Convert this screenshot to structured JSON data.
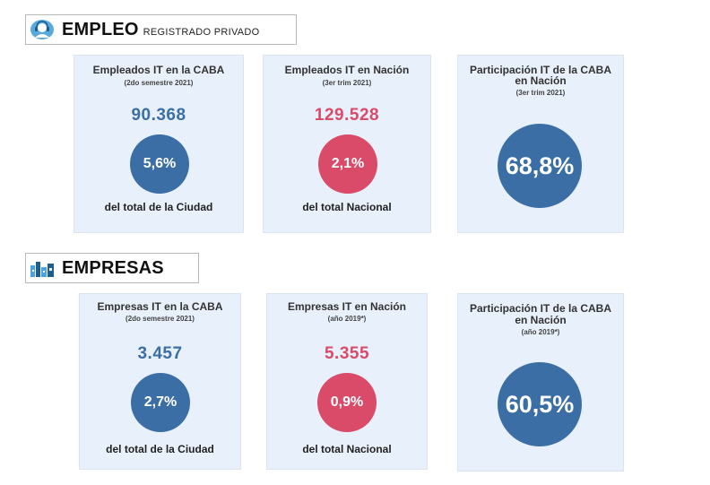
{
  "empleo": {
    "title": "EMPLEO",
    "subtitle": "REGISTRADO PRIVADO",
    "icon": "person-headset-icon",
    "cards": [
      {
        "title": "Empleados IT en la CABA",
        "sub": "(2do semestre 2021)",
        "value": "90.368",
        "percent": "5,6%",
        "footer": "del total de la Ciudad"
      },
      {
        "title": "Empleados IT en Nación",
        "sub": "(3er trim 2021)",
        "value": "129.528",
        "percent": "2,1%",
        "footer": "del total Nacional"
      },
      {
        "title_line1": "Participación IT de la CABA",
        "title_line2": "en Nación",
        "sub": "(3er trim 2021)",
        "percent": "68,8%"
      }
    ]
  },
  "empresas": {
    "title": "EMPRESAS",
    "icon": "factory-icon",
    "cards": [
      {
        "title": "Empresas IT en la CABA",
        "sub": "(2do semestre 2021)",
        "value": "3.457",
        "percent": "2,7%",
        "footer": "del total de la Ciudad"
      },
      {
        "title": "Empresas IT en Nación",
        "sub": "(año 2019*)",
        "value": "5.355",
        "percent": "0,9%",
        "footer": "del total Nacional"
      },
      {
        "title_line1": "Participación IT de la CABA",
        "title_line2": "en Nación",
        "sub": "(año 2019*)",
        "percent": "60,5%"
      }
    ]
  },
  "colors": {
    "blue": "#3a6ea5",
    "red": "#d94b68",
    "card_bg": "#e8f0fb"
  }
}
